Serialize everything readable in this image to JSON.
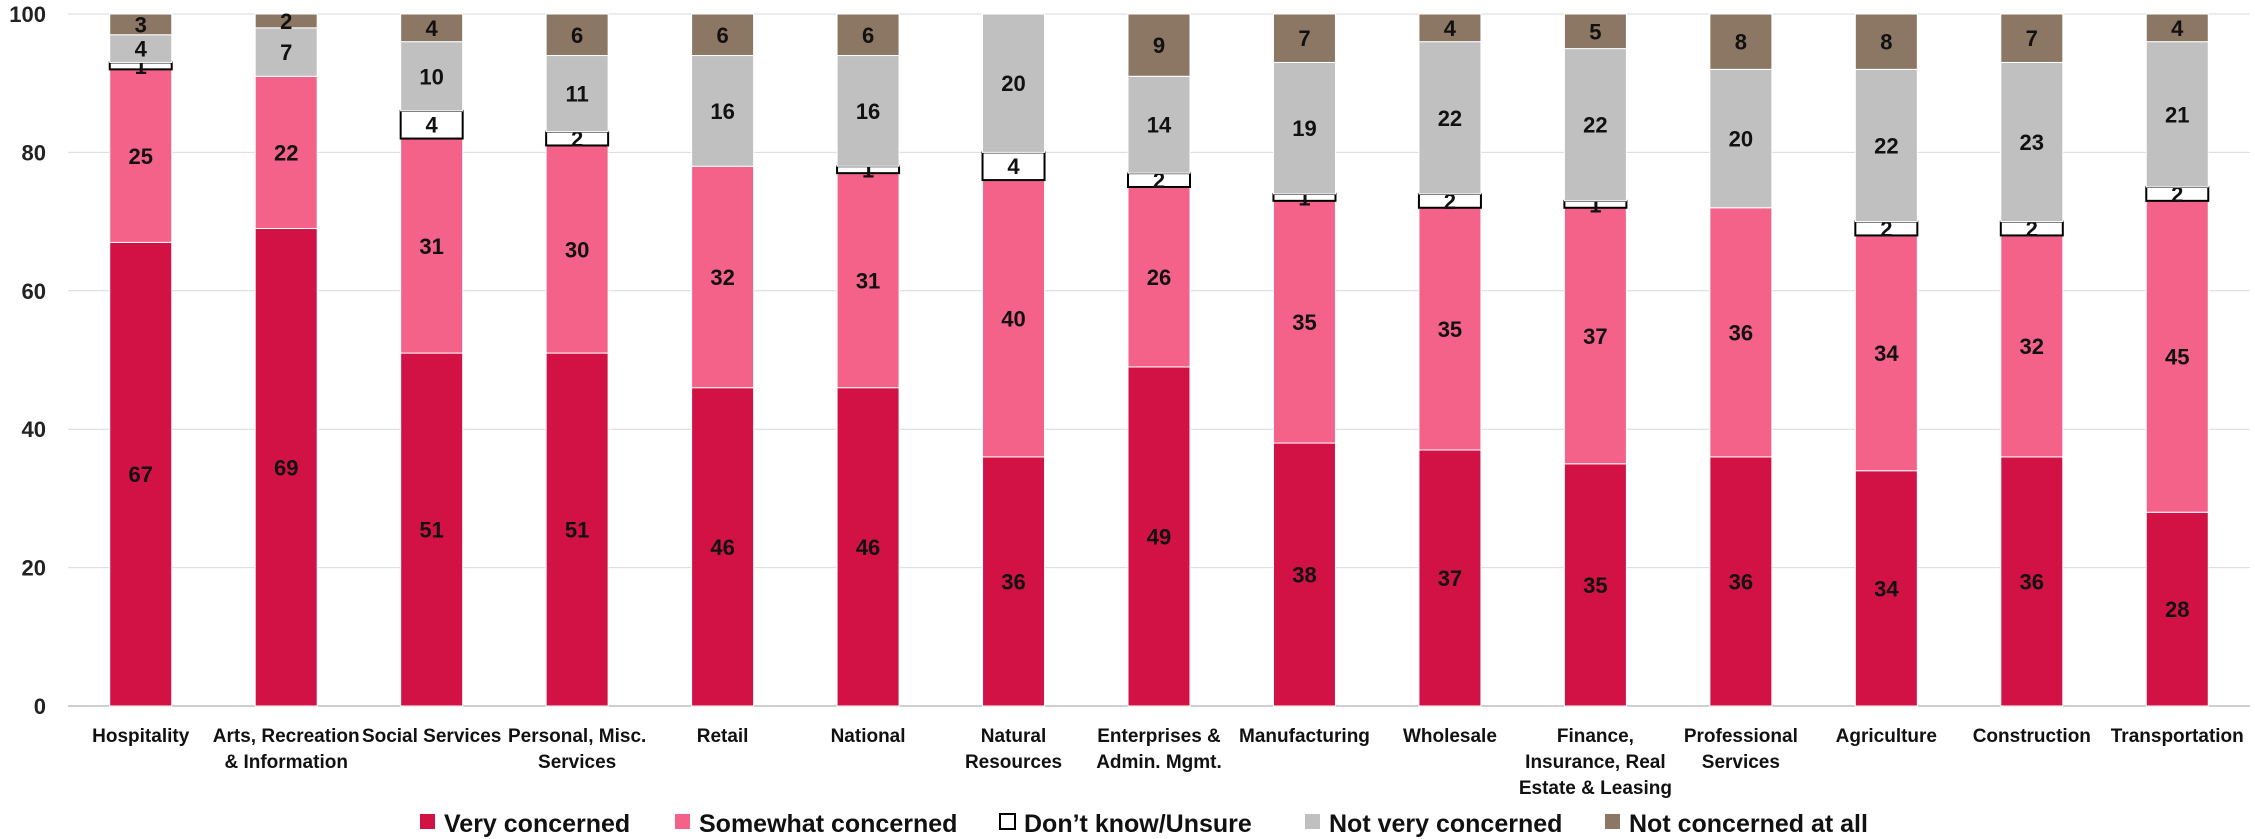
{
  "chart_data": {
    "type": "bar",
    "stacked": true,
    "ylim": [
      0,
      100
    ],
    "yticks": [
      "0",
      "20",
      "40",
      "60",
      "80",
      "100"
    ],
    "grid": true,
    "legend_position": "bottom",
    "categories": [
      "Hospitality",
      "Arts, Recreation\n& Information",
      "Social Services",
      "Personal, Misc.\nServices",
      "Retail",
      "National",
      "Natural\nResources",
      "Enterprises &\nAdmin. Mgmt.",
      "Manufacturing",
      "Wholesale",
      "Finance,\nInsurance, Real\nEstate & Leasing",
      "Professional\nServices",
      "Agriculture",
      "Construction",
      "Transportation"
    ],
    "series": [
      {
        "name": "Very concerned",
        "color": "#d21245",
        "values": [
          67,
          69,
          51,
          51,
          46,
          46,
          36,
          49,
          38,
          37,
          35,
          36,
          34,
          36,
          28
        ]
      },
      {
        "name": "Somewhat concerned",
        "color": "#f4628a",
        "values": [
          25,
          22,
          31,
          30,
          32,
          31,
          40,
          26,
          35,
          35,
          37,
          36,
          34,
          32,
          45
        ]
      },
      {
        "name": "Don’t know/Unsure",
        "color": "#ffffff",
        "values": [
          1,
          null,
          4,
          2,
          null,
          1,
          4,
          2,
          1,
          2,
          1,
          null,
          2,
          2,
          2
        ]
      },
      {
        "name": "Not very concerned",
        "color": "#c0c0c0",
        "values": [
          4,
          7,
          10,
          11,
          16,
          16,
          20,
          14,
          19,
          22,
          22,
          20,
          22,
          23,
          21
        ]
      },
      {
        "name": "Not concerned at all",
        "color": "#8b7764",
        "values": [
          3,
          2,
          4,
          6,
          6,
          6,
          null,
          9,
          7,
          4,
          5,
          8,
          8,
          7,
          4
        ]
      }
    ]
  }
}
